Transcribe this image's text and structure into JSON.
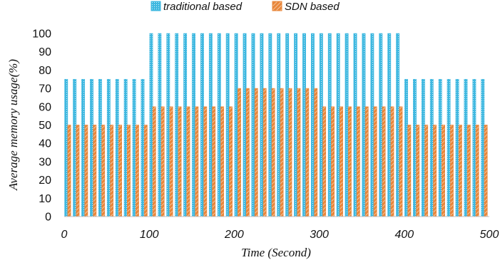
{
  "chart_data": {
    "type": "bar",
    "xlabel": "Time (Second)",
    "ylabel": "Average memory usage(%)",
    "x": [
      0,
      10,
      20,
      30,
      40,
      50,
      60,
      70,
      80,
      90,
      100,
      110,
      120,
      130,
      140,
      150,
      160,
      170,
      180,
      190,
      200,
      210,
      220,
      230,
      240,
      250,
      260,
      270,
      280,
      290,
      300,
      310,
      320,
      330,
      340,
      350,
      360,
      370,
      380,
      390,
      400,
      410,
      420,
      430,
      440,
      450,
      460,
      470,
      480,
      490
    ],
    "xticks": [
      0,
      100,
      200,
      300,
      400,
      500
    ],
    "xlim": [
      0,
      500
    ],
    "ylim": [
      0,
      100
    ],
    "yticks": [
      0,
      10,
      20,
      30,
      40,
      50,
      60,
      70,
      80,
      90,
      100
    ],
    "grid": false,
    "legend_position": "top-center",
    "series": [
      {
        "name": "traditional based",
        "color": "#3fb8e0",
        "values": [
          75,
          75,
          75,
          75,
          75,
          75,
          75,
          75,
          75,
          75,
          100,
          100,
          100,
          100,
          100,
          100,
          100,
          100,
          100,
          100,
          100,
          100,
          100,
          100,
          100,
          100,
          100,
          100,
          100,
          100,
          100,
          100,
          100,
          100,
          100,
          100,
          100,
          100,
          100,
          100,
          75,
          75,
          75,
          75,
          75,
          75,
          75,
          75,
          75,
          75
        ]
      },
      {
        "name": "SDN based",
        "color": "#e8863a",
        "values": [
          50,
          50,
          50,
          50,
          50,
          50,
          50,
          50,
          50,
          50,
          60,
          60,
          60,
          60,
          60,
          60,
          60,
          60,
          60,
          60,
          70,
          70,
          70,
          70,
          70,
          70,
          70,
          70,
          70,
          70,
          60,
          60,
          60,
          60,
          60,
          60,
          60,
          60,
          60,
          60,
          50,
          50,
          50,
          50,
          50,
          50,
          50,
          50,
          50,
          50
        ]
      }
    ]
  }
}
